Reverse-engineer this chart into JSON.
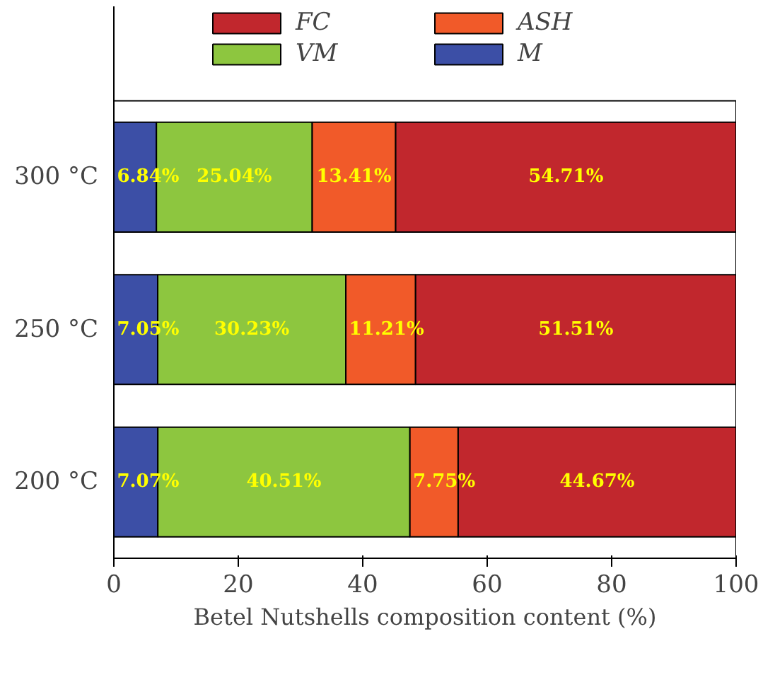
{
  "chart_data": {
    "type": "bar",
    "orientation": "horizontal",
    "stacked": true,
    "categories": [
      "300 °C",
      "250 °C",
      "200 °C"
    ],
    "xlabel": "Betel Nutshells composition content (%)",
    "xlim": [
      0,
      100
    ],
    "xticks": [
      0,
      20,
      40,
      60,
      80,
      100
    ],
    "legend": "top",
    "grid": false,
    "series": [
      {
        "name": "M",
        "color": "#3c4fa6",
        "values": [
          6.84,
          7.05,
          7.07
        ],
        "value_labels": [
          "6.84%",
          "7.05%",
          "7.07%"
        ]
      },
      {
        "name": "VM",
        "color": "#8dc63f",
        "values": [
          25.04,
          30.23,
          40.51
        ],
        "value_labels": [
          "25.04%",
          "30.23%",
          "40.51%"
        ]
      },
      {
        "name": "ASH",
        "color": "#f15a29",
        "values": [
          13.41,
          11.21,
          7.75
        ],
        "value_labels": [
          "13.41%",
          "11.21%",
          "7.75%"
        ]
      },
      {
        "name": "FC",
        "color": "#c1272d",
        "values": [
          54.71,
          51.51,
          44.67
        ],
        "value_labels": [
          "54.71%",
          "51.51%",
          "44.67%"
        ]
      }
    ]
  }
}
